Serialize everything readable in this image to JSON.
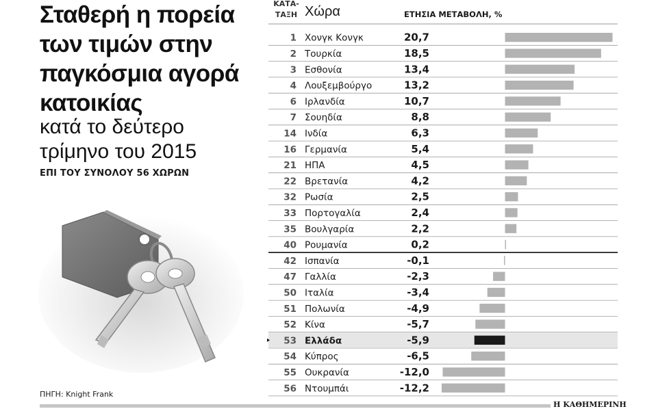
{
  "headline": {
    "title": "Σταθερή η πορεία των τιμών στην παγκόσμια αγορά κατοικίας",
    "subtitle": "κατά το δεύτερο τρίμηνο του 2015",
    "note": "ΕΠΙ ΤΟΥ ΣΥΝΟΛΟΥ 56 ΧΩΡΩΝ"
  },
  "source": "ΠΗΓΗ: Knight Frank",
  "brand": "Η ΚΑΘΗΜΕΡΙΝΗ",
  "headers": {
    "rank": "ΚΑΤΑ-\nΤΑΞΗ",
    "country": "Χώρα",
    "change": "ΕΤΗΣΙΑ ΜΕΤΑΒΟΛΗ, %"
  },
  "colors": {
    "bar": "#b3b3b3",
    "highlight_bar": "#1a1a1a",
    "highlight_row": "#e6e6e6",
    "rule": "#9a9a9a"
  },
  "chart_data": {
    "type": "bar",
    "orientation": "horizontal",
    "columns": [
      "rank",
      "country",
      "value"
    ],
    "categories": [
      "Χονγκ Κονγκ",
      "Τουρκία",
      "Εσθονία",
      "Λουξεμβούργο",
      "Ιρλανδία",
      "Σουηδία",
      "Ινδία",
      "Γερμανία",
      "ΗΠΑ",
      "Βρετανία",
      "Ρωσία",
      "Πορτογαλία",
      "Βουλγαρία",
      "Ρουμανία",
      "Ισπανία",
      "Γαλλία",
      "Ιταλία",
      "Πολωνία",
      "Κίνα",
      "Ελλάδα",
      "Κύπρος",
      "Ουκρανία",
      "Ντουμπάι"
    ],
    "ranks": [
      1,
      2,
      3,
      4,
      6,
      7,
      14,
      16,
      21,
      22,
      32,
      33,
      35,
      40,
      42,
      47,
      50,
      51,
      52,
      53,
      54,
      55,
      56
    ],
    "values": [
      20.7,
      18.5,
      13.4,
      13.2,
      10.7,
      8.8,
      6.3,
      5.4,
      4.5,
      4.2,
      2.5,
      2.4,
      2.2,
      0.2,
      -0.1,
      -2.3,
      -3.4,
      -4.9,
      -5.7,
      -5.9,
      -6.5,
      -12.0,
      -12.2
    ],
    "value_labels": [
      "20,7",
      "18,5",
      "13,4",
      "13,2",
      "10,7",
      "8,8",
      "6,3",
      "5,4",
      "4,5",
      "4,2",
      "2,5",
      "2,4",
      "2,2",
      "0,2",
      "-0,1",
      "-2,3",
      "-3,4",
      "-4,9",
      "-5,7",
      "-5,9",
      "-6,5",
      "-12,0",
      "-12,2"
    ],
    "highlight": "Ελλάδα",
    "xlim": [
      -12.2,
      20.7
    ],
    "grid": false,
    "legend": "none"
  }
}
